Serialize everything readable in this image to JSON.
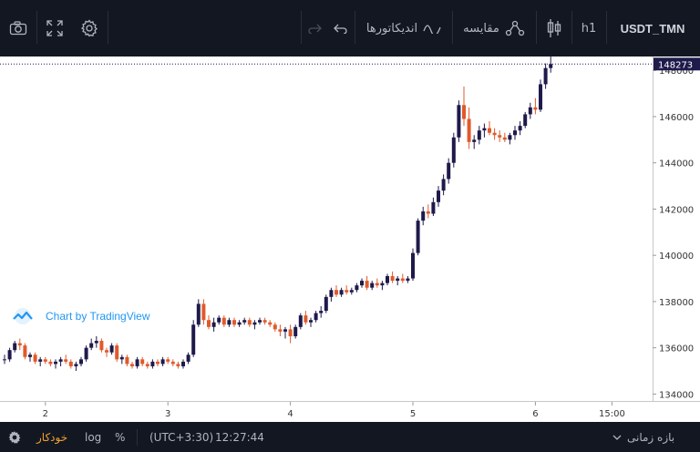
{
  "toolbar": {
    "symbol": "USDT_TMN",
    "interval": "h1",
    "compare_label": "مقایسه",
    "indicators_label": "اندیکاتورها"
  },
  "watermark": {
    "text": "Chart by TradingView"
  },
  "bottom": {
    "timeframe_label": "بازه زمانی",
    "time_label": "12:27:44",
    "timezone_label": "(UTC+3:30)",
    "percent_label": "%",
    "log_label": "log",
    "auto_label": "خودکار"
  },
  "colors": {
    "up": "#1e1a4b",
    "down": "#e05a2b",
    "accent": "#f0a030"
  },
  "chart_data": {
    "type": "candlestick",
    "title": "",
    "last_price": 148273,
    "ylim": [
      133700,
      148600
    ],
    "y_ticks": [
      134000,
      136000,
      138000,
      140000,
      142000,
      144000,
      146000,
      148000
    ],
    "x_ticks": [
      {
        "label": "2",
        "index": 8
      },
      {
        "label": "3",
        "index": 32
      },
      {
        "label": "4",
        "index": 56
      },
      {
        "label": "5",
        "index": 80
      },
      {
        "label": "6",
        "index": 104
      },
      {
        "label": "15:00",
        "index": 119
      }
    ],
    "candles": [
      [
        135500,
        135700,
        135300,
        135500
      ],
      [
        135500,
        136000,
        135400,
        135900
      ],
      [
        135900,
        136300,
        135800,
        136200
      ],
      [
        136200,
        136400,
        135900,
        136100
      ],
      [
        136100,
        136200,
        135500,
        135600
      ],
      [
        135600,
        135800,
        135400,
        135700
      ],
      [
        135700,
        135800,
        135300,
        135400
      ],
      [
        135400,
        135600,
        135200,
        135500
      ],
      [
        135500,
        135600,
        135300,
        135400
      ],
      [
        135400,
        135500,
        135200,
        135300
      ],
      [
        135300,
        135500,
        135100,
        135400
      ],
      [
        135400,
        135600,
        135200,
        135500
      ],
      [
        135500,
        135700,
        135300,
        135400
      ],
      [
        135400,
        135500,
        135100,
        135200
      ],
      [
        135200,
        135400,
        135000,
        135300
      ],
      [
        135300,
        135600,
        135200,
        135500
      ],
      [
        135500,
        136100,
        135400,
        136000
      ],
      [
        136000,
        136400,
        135900,
        136200
      ],
      [
        136200,
        136500,
        136000,
        136300
      ],
      [
        136300,
        136400,
        135800,
        135900
      ],
      [
        135900,
        136000,
        135600,
        135800
      ],
      [
        135800,
        136200,
        135700,
        136100
      ],
      [
        136100,
        136200,
        135400,
        135500
      ],
      [
        135500,
        135700,
        135300,
        135600
      ],
      [
        135600,
        135700,
        135200,
        135300
      ],
      [
        135300,
        135400,
        135100,
        135200
      ],
      [
        135200,
        135600,
        135100,
        135500
      ],
      [
        135500,
        135600,
        135200,
        135300
      ],
      [
        135300,
        135400,
        135100,
        135200
      ],
      [
        135200,
        135500,
        135100,
        135400
      ],
      [
        135400,
        135500,
        135200,
        135300
      ],
      [
        135300,
        135600,
        135200,
        135500
      ],
      [
        135500,
        135600,
        135300,
        135400
      ],
      [
        135400,
        135500,
        135200,
        135300
      ],
      [
        135300,
        135400,
        135100,
        135200
      ],
      [
        135200,
        135500,
        135100,
        135400
      ],
      [
        135400,
        135800,
        135300,
        135700
      ],
      [
        135700,
        137200,
        135600,
        137000
      ],
      [
        137000,
        138100,
        136900,
        137900
      ],
      [
        137900,
        138100,
        137000,
        137200
      ],
      [
        137200,
        137400,
        136800,
        136900
      ],
      [
        136900,
        137300,
        136700,
        137100
      ],
      [
        137100,
        137400,
        137000,
        137300
      ],
      [
        137300,
        137400,
        136900,
        137000
      ],
      [
        137000,
        137300,
        136900,
        137200
      ],
      [
        137200,
        137300,
        136900,
        137000
      ],
      [
        137000,
        137200,
        136900,
        137100
      ],
      [
        137100,
        137300,
        137000,
        137200
      ],
      [
        137200,
        137300,
        136900,
        137000
      ],
      [
        137000,
        137200,
        136800,
        137100
      ],
      [
        137100,
        137300,
        137000,
        137200
      ],
      [
        137200,
        137300,
        137000,
        137100
      ],
      [
        137100,
        137200,
        136900,
        137000
      ],
      [
        137000,
        137100,
        136700,
        136800
      ],
      [
        136800,
        137000,
        136500,
        136700
      ],
      [
        136700,
        136900,
        136400,
        136800
      ],
      [
        136800,
        137000,
        136200,
        136500
      ],
      [
        136500,
        137000,
        136400,
        136900
      ],
      [
        136900,
        137500,
        136800,
        137400
      ],
      [
        137400,
        137600,
        137000,
        137100
      ],
      [
        137100,
        137300,
        136900,
        137200
      ],
      [
        137200,
        137600,
        137100,
        137500
      ],
      [
        137500,
        137800,
        137300,
        137600
      ],
      [
        137600,
        138300,
        137500,
        138200
      ],
      [
        138200,
        138600,
        138000,
        138500
      ],
      [
        138500,
        138700,
        138200,
        138300
      ],
      [
        138300,
        138600,
        138200,
        138500
      ],
      [
        138500,
        138700,
        138300,
        138400
      ],
      [
        138400,
        138600,
        138300,
        138500
      ],
      [
        138500,
        138800,
        138400,
        138700
      ],
      [
        138700,
        139000,
        138600,
        138900
      ],
      [
        138900,
        139100,
        138500,
        138600
      ],
      [
        138600,
        138900,
        138500,
        138800
      ],
      [
        138800,
        139000,
        138600,
        138700
      ],
      [
        138700,
        138900,
        138500,
        138800
      ],
      [
        138800,
        139200,
        138700,
        139100
      ],
      [
        139100,
        139300,
        138800,
        138900
      ],
      [
        138900,
        139100,
        138700,
        139000
      ],
      [
        139000,
        139200,
        138800,
        138900
      ],
      [
        138900,
        139100,
        138800,
        139000
      ],
      [
        139000,
        140300,
        138900,
        140100
      ],
      [
        140100,
        141600,
        140000,
        141500
      ],
      [
        141500,
        142100,
        141300,
        141900
      ],
      [
        141900,
        142200,
        141600,
        141800
      ],
      [
        141800,
        142500,
        141700,
        142300
      ],
      [
        142300,
        143000,
        142100,
        142800
      ],
      [
        142800,
        143500,
        142600,
        143300
      ],
      [
        143300,
        144200,
        143100,
        144000
      ],
      [
        144000,
        145300,
        143800,
        145100
      ],
      [
        145100,
        146700,
        144900,
        146500
      ],
      [
        146500,
        147300,
        145600,
        145900
      ],
      [
        145900,
        146400,
        144600,
        144900
      ],
      [
        144900,
        145200,
        144600,
        145000
      ],
      [
        145000,
        145600,
        144800,
        145400
      ],
      [
        145400,
        145700,
        145100,
        145500
      ],
      [
        145500,
        145800,
        145200,
        145300
      ],
      [
        145300,
        145500,
        145000,
        145200
      ],
      [
        145200,
        145400,
        144900,
        145100
      ],
      [
        145100,
        145300,
        144900,
        145000
      ],
      [
        145000,
        145300,
        144800,
        145200
      ],
      [
        145200,
        145600,
        145000,
        145400
      ],
      [
        145400,
        145800,
        145200,
        145600
      ],
      [
        145600,
        146200,
        145500,
        146100
      ],
      [
        146100,
        146600,
        145900,
        146400
      ],
      [
        146400,
        146800,
        146100,
        146300
      ],
      [
        146300,
        147600,
        146200,
        147400
      ],
      [
        147400,
        148300,
        147200,
        148100
      ],
      [
        148100,
        148600,
        147900,
        148273
      ]
    ]
  }
}
